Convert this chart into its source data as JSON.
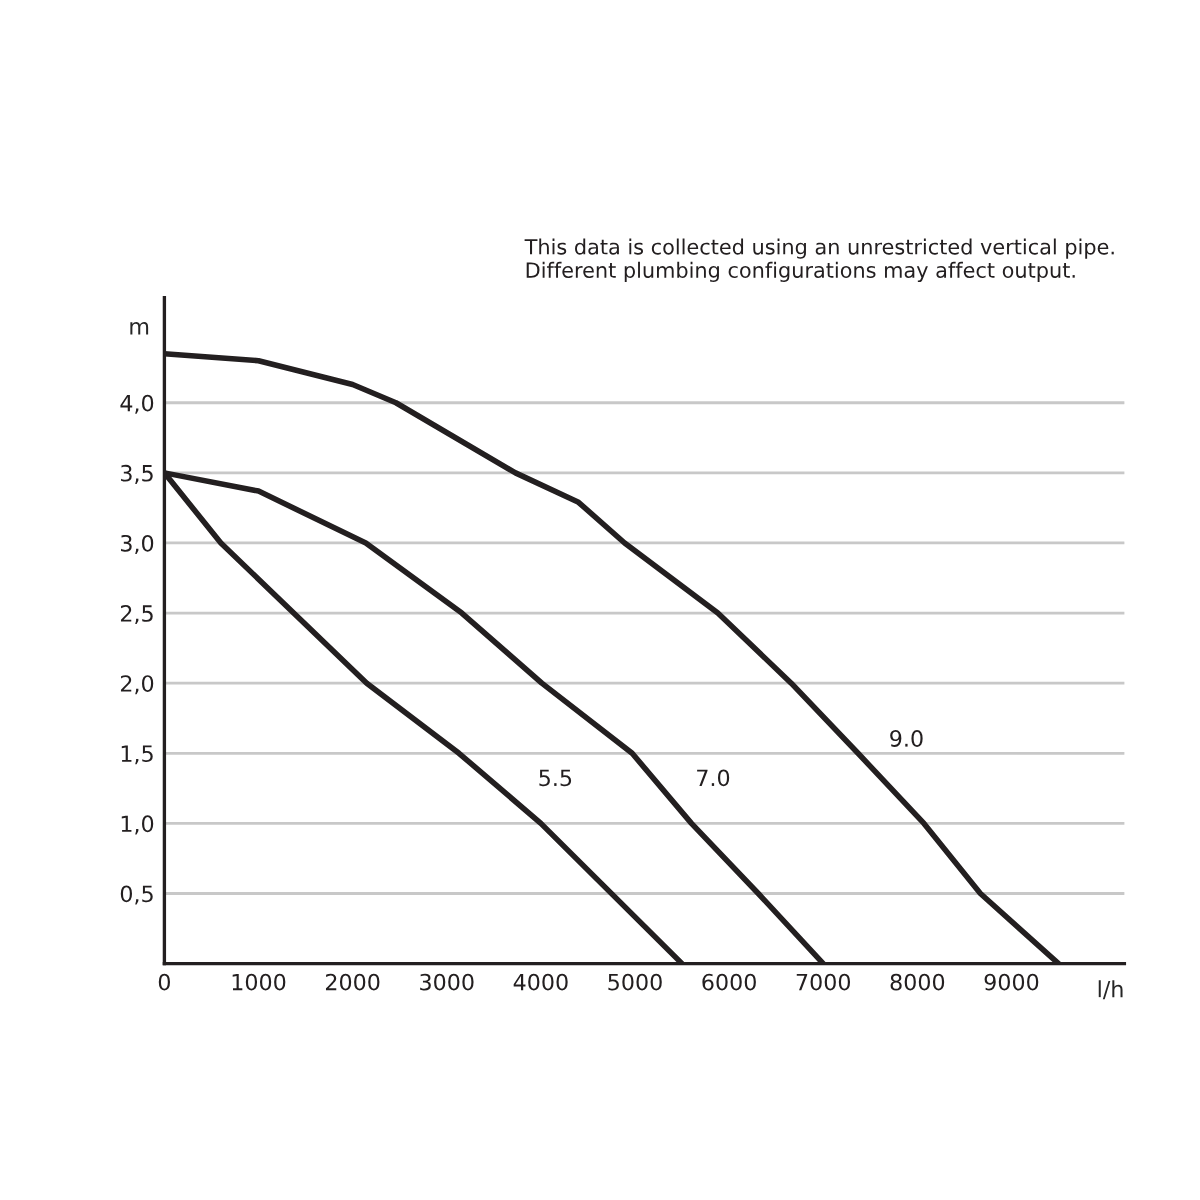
{
  "chart_data": {
    "type": "line",
    "xlabel": "l/h",
    "ylabel": "m",
    "annotations": [
      "This data is collected using an unrestricted vertical pipe.\nDifferent plumbing configurations may affect output."
    ],
    "series": [
      {
        "name": "5.5",
        "color": "#231f20",
        "x": [
          0,
          600,
          2150,
          3130,
          4000,
          5500
        ],
        "values": [
          3.5,
          3.0,
          2.0,
          1.5,
          1.0,
          0
        ]
      },
      {
        "name": "7.0",
        "color": "#231f20",
        "x": [
          0,
          1000,
          2140,
          3160,
          4010,
          4970,
          5600,
          6310,
          7000
        ],
        "values": [
          3.5,
          3.37,
          3.0,
          2.5,
          2.0,
          1.5,
          1.0,
          0.5,
          0
        ]
      },
      {
        "name": "9.0",
        "color": "#231f20",
        "x": [
          0,
          1000,
          2000,
          2460,
          3730,
          4400,
          4890,
          5880,
          6660,
          7370,
          8070,
          8670,
          9500
        ],
        "values": [
          4.35,
          4.3,
          4.13,
          4.0,
          3.5,
          3.29,
          3.0,
          2.5,
          2.0,
          1.5,
          1.0,
          0.5,
          0
        ]
      }
    ],
    "xlim": [
      0,
      10200
    ],
    "ylim": [
      0,
      4.75
    ],
    "xticks": [
      0,
      1000,
      2000,
      3000,
      4000,
      5000,
      6000,
      7000,
      8000,
      9000
    ],
    "yticks": [
      {
        "value": 0.5,
        "label": "0,5"
      },
      {
        "value": 1.0,
        "label": "1,0"
      },
      {
        "value": 1.5,
        "label": "1,5"
      },
      {
        "value": 2.0,
        "label": "2,0"
      },
      {
        "value": 2.5,
        "label": "2,5"
      },
      {
        "value": 3.0,
        "label": "3,0"
      },
      {
        "value": 3.5,
        "label": "3,5"
      },
      {
        "value": 4.0,
        "label": "4,0"
      }
    ],
    "grid": "y",
    "legend": false,
    "marker": "none",
    "line_style": "solid"
  }
}
